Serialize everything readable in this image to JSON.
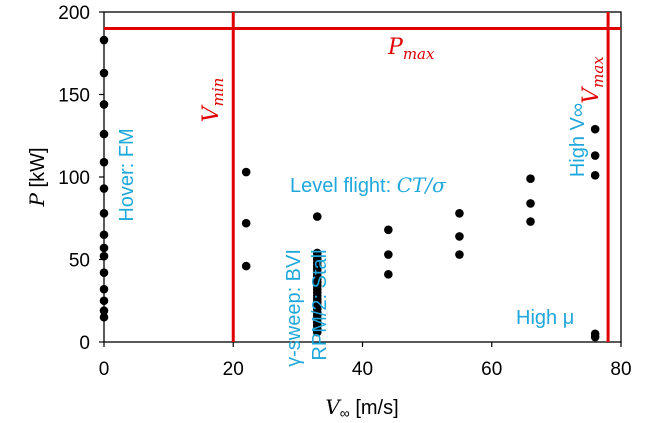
{
  "chart_data": {
    "type": "scatter",
    "xlabel": "V∞ [m/s]",
    "ylabel": "P [kW]",
    "xlim": [
      0,
      80
    ],
    "ylim": [
      0,
      200
    ],
    "x_ticks": [
      0,
      20,
      40,
      60,
      80
    ],
    "y_ticks": [
      0,
      50,
      100,
      150,
      200
    ],
    "grid": false,
    "marker_color": "#000000",
    "limit_color": "#e00000",
    "annotation_color": "#1fa8dc",
    "series": [
      {
        "points": [
          [
            0,
            183
          ],
          [
            0,
            163
          ],
          [
            0,
            144
          ],
          [
            0,
            126
          ],
          [
            0,
            109
          ],
          [
            0,
            93
          ],
          [
            0,
            78
          ],
          [
            0,
            65
          ],
          [
            0,
            57
          ],
          [
            0,
            52
          ],
          [
            0,
            42
          ],
          [
            0,
            32
          ],
          [
            0,
            25
          ],
          [
            0,
            19
          ],
          [
            0,
            15
          ],
          [
            22,
            103
          ],
          [
            22,
            72
          ],
          [
            22,
            46
          ],
          [
            33,
            76
          ],
          [
            33,
            54
          ],
          [
            33,
            52
          ],
          [
            33,
            50
          ],
          [
            33,
            48
          ],
          [
            33,
            46
          ],
          [
            33,
            44
          ],
          [
            33,
            42
          ],
          [
            33,
            40
          ],
          [
            33,
            38
          ],
          [
            33,
            36
          ],
          [
            33,
            34
          ],
          [
            33,
            32
          ],
          [
            33,
            30
          ],
          [
            33,
            28
          ],
          [
            33,
            26
          ],
          [
            33,
            24
          ],
          [
            33,
            22
          ],
          [
            33,
            20
          ],
          [
            33,
            18
          ],
          [
            33,
            16
          ],
          [
            33,
            14
          ],
          [
            33,
            12
          ],
          [
            33,
            10
          ],
          [
            33,
            8
          ],
          [
            33,
            6
          ],
          [
            44,
            68
          ],
          [
            44,
            53
          ],
          [
            44,
            41
          ],
          [
            55,
            78
          ],
          [
            55,
            64
          ],
          [
            55,
            53
          ],
          [
            66,
            99
          ],
          [
            66,
            84
          ],
          [
            66,
            73
          ],
          [
            76,
            129
          ],
          [
            76,
            113
          ],
          [
            76,
            101
          ],
          [
            76,
            5
          ],
          [
            76,
            3
          ]
        ]
      }
    ],
    "limits": {
      "Vmin": 20,
      "Vmax": 78,
      "Pmax": 190
    },
    "limit_labels": {
      "Vmin": {
        "main": "V",
        "sub": "min"
      },
      "Vmax": {
        "main": "V",
        "sub": "max"
      },
      "Pmax": {
        "main": "P",
        "sub": "max"
      }
    },
    "annotations": {
      "hover": "Hover: FM",
      "level_flight_prefix": "Level flight: ",
      "level_flight_math": "CT/σ",
      "gamma_sweep": "γ-sweep: BVI",
      "rpm": "RPM/2: Stall",
      "high_v": "High V∞",
      "high_mu": "High μ"
    }
  }
}
